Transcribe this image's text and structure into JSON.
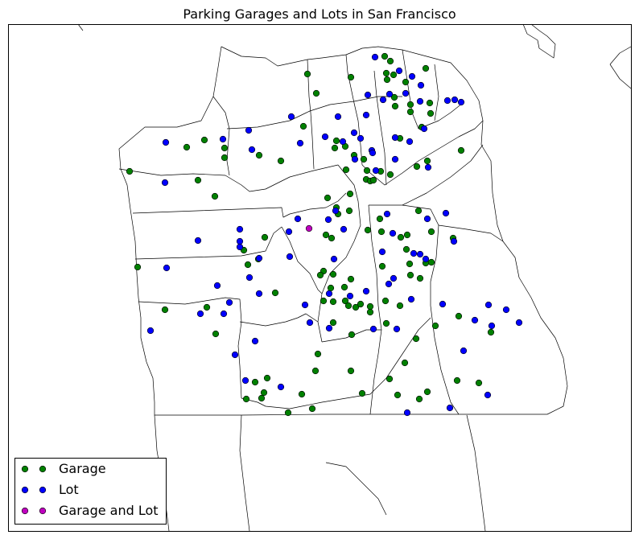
{
  "chart_data": {
    "type": "scatter",
    "title": "Parking Garages and Lots in San Francisco",
    "xlabel": "",
    "ylabel": "",
    "grid": false,
    "legend_position": "lower-left",
    "note": "",
    "series": [
      {
        "name": "Garage",
        "color": "#008000",
        "points": [
          [
            478,
            70
          ],
          [
            485,
            76
          ],
          [
            529,
            85
          ],
          [
            382,
            92
          ],
          [
            436,
            96
          ],
          [
            480,
            91
          ],
          [
            489,
            93
          ],
          [
            481,
            99
          ],
          [
            504,
            102
          ],
          [
            490,
            121
          ],
          [
            393,
            116
          ],
          [
            510,
            130
          ],
          [
            534,
            128
          ],
          [
            491,
            132
          ],
          [
            535,
            141
          ],
          [
            510,
            139
          ],
          [
            377,
            157
          ],
          [
            524,
            158
          ],
          [
            418,
            175
          ],
          [
            429,
            182
          ],
          [
            416,
            184
          ],
          [
            254,
            174
          ],
          [
            232,
            183
          ],
          [
            279,
            184
          ],
          [
            279,
            196
          ],
          [
            322,
            193
          ],
          [
            349,
            200
          ],
          [
            440,
            193
          ],
          [
            452,
            198
          ],
          [
            161,
            213
          ],
          [
            430,
            211
          ],
          [
            456,
            212
          ],
          [
            473,
            213
          ],
          [
            485,
            217
          ],
          [
            518,
            207
          ],
          [
            531,
            200
          ],
          [
            497,
            172
          ],
          [
            573,
            187
          ],
          [
            246,
            224
          ],
          [
            455,
            223
          ],
          [
            460,
            225
          ],
          [
            464,
            224
          ],
          [
            267,
            244
          ],
          [
            407,
            246
          ],
          [
            435,
            241
          ],
          [
            418,
            258
          ],
          [
            420,
            266
          ],
          [
            434,
            262
          ],
          [
            472,
            272
          ],
          [
            520,
            262
          ],
          [
            474,
            288
          ],
          [
            457,
            286
          ],
          [
            498,
            295
          ],
          [
            506,
            292
          ],
          [
            329,
            295
          ],
          [
            405,
            292
          ],
          [
            412,
            296
          ],
          [
            536,
            288
          ],
          [
            563,
            296
          ],
          [
            303,
            311
          ],
          [
            321,
            322
          ],
          [
            308,
            329
          ],
          [
            171,
            332
          ],
          [
            402,
            337
          ],
          [
            398,
            342
          ],
          [
            414,
            341
          ],
          [
            475,
            331
          ],
          [
            509,
            328
          ],
          [
            529,
            327
          ],
          [
            536,
            326
          ],
          [
            505,
            310
          ],
          [
            510,
            342
          ],
          [
            522,
            346
          ],
          [
            411,
            358
          ],
          [
            428,
            357
          ],
          [
            436,
            347
          ],
          [
            342,
            364
          ],
          [
            402,
            374
          ],
          [
            414,
            375
          ],
          [
            429,
            374
          ],
          [
            433,
            380
          ],
          [
            442,
            382
          ],
          [
            448,
            378
          ],
          [
            460,
            381
          ],
          [
            460,
            388
          ],
          [
            479,
            374
          ],
          [
            497,
            380
          ],
          [
            257,
            382
          ],
          [
            205,
            385
          ],
          [
            268,
            415
          ],
          [
            414,
            401
          ],
          [
            480,
            402
          ],
          [
            541,
            405
          ],
          [
            570,
            393
          ],
          [
            610,
            413
          ],
          [
            437,
            416
          ],
          [
            395,
            440
          ],
          [
            517,
            421
          ],
          [
            503,
            451
          ],
          [
            392,
            461
          ],
          [
            436,
            461
          ],
          [
            332,
            470
          ],
          [
            317,
            475
          ],
          [
            484,
            471
          ],
          [
            568,
            473
          ],
          [
            595,
            476
          ],
          [
            328,
            488
          ],
          [
            375,
            490
          ],
          [
            450,
            489
          ],
          [
            494,
            491
          ],
          [
            521,
            496
          ],
          [
            531,
            487
          ],
          [
            306,
            496
          ],
          [
            325,
            495
          ],
          [
            358,
            513
          ],
          [
            388,
            508
          ]
        ]
      },
      {
        "name": "Lot",
        "color": "#0000ff",
        "points": [
          [
            466,
            71
          ],
          [
            496,
            88
          ],
          [
            512,
            95
          ],
          [
            523,
            106
          ],
          [
            457,
            118
          ],
          [
            476,
            124
          ],
          [
            484,
            117
          ],
          [
            504,
            116
          ],
          [
            522,
            126
          ],
          [
            556,
            125
          ],
          [
            565,
            124
          ],
          [
            573,
            127
          ],
          [
            362,
            145
          ],
          [
            455,
            143
          ],
          [
            309,
            162
          ],
          [
            206,
            177
          ],
          [
            277,
            173
          ],
          [
            313,
            186
          ],
          [
            373,
            178
          ],
          [
            404,
            170
          ],
          [
            420,
            145
          ],
          [
            440,
            165
          ],
          [
            448,
            172
          ],
          [
            426,
            176
          ],
          [
            462,
            187
          ],
          [
            491,
            171
          ],
          [
            509,
            176
          ],
          [
            527,
            160
          ],
          [
            441,
            198
          ],
          [
            463,
            190
          ],
          [
            467,
            212
          ],
          [
            491,
            198
          ],
          [
            532,
            208
          ],
          [
            205,
            227
          ],
          [
            298,
            285
          ],
          [
            298,
            300
          ],
          [
            246,
            299
          ],
          [
            298,
            307
          ],
          [
            370,
            272
          ],
          [
            359,
            288
          ],
          [
            408,
            273
          ],
          [
            417,
            262
          ],
          [
            427,
            285
          ],
          [
            481,
            266
          ],
          [
            531,
            272
          ],
          [
            554,
            265
          ],
          [
            488,
            290
          ],
          [
            514,
            315
          ],
          [
            522,
            316
          ],
          [
            529,
            322
          ],
          [
            564,
            300
          ],
          [
            360,
            319
          ],
          [
            322,
            321
          ],
          [
            207,
            333
          ],
          [
            415,
            322
          ],
          [
            475,
            313
          ],
          [
            310,
            345
          ],
          [
            483,
            353
          ],
          [
            489,
            346
          ],
          [
            270,
            355
          ],
          [
            322,
            365
          ],
          [
            379,
            379
          ],
          [
            285,
            376
          ],
          [
            409,
            365
          ],
          [
            435,
            368
          ],
          [
            455,
            362
          ],
          [
            511,
            372
          ],
          [
            550,
            378
          ],
          [
            607,
            379
          ],
          [
            629,
            385
          ],
          [
            645,
            401
          ],
          [
            249,
            390
          ],
          [
            278,
            390
          ],
          [
            187,
            411
          ],
          [
            385,
            401
          ],
          [
            409,
            408
          ],
          [
            464,
            409
          ],
          [
            493,
            409
          ],
          [
            590,
            398
          ],
          [
            611,
            405
          ],
          [
            317,
            424
          ],
          [
            292,
            441
          ],
          [
            576,
            436
          ],
          [
            305,
            473
          ],
          [
            349,
            481
          ],
          [
            606,
            491
          ],
          [
            506,
            513
          ],
          [
            559,
            507
          ]
        ]
      },
      {
        "name": "Garage and Lot",
        "color": "#bf00bf",
        "points": [
          [
            384,
            284
          ]
        ]
      }
    ]
  }
}
